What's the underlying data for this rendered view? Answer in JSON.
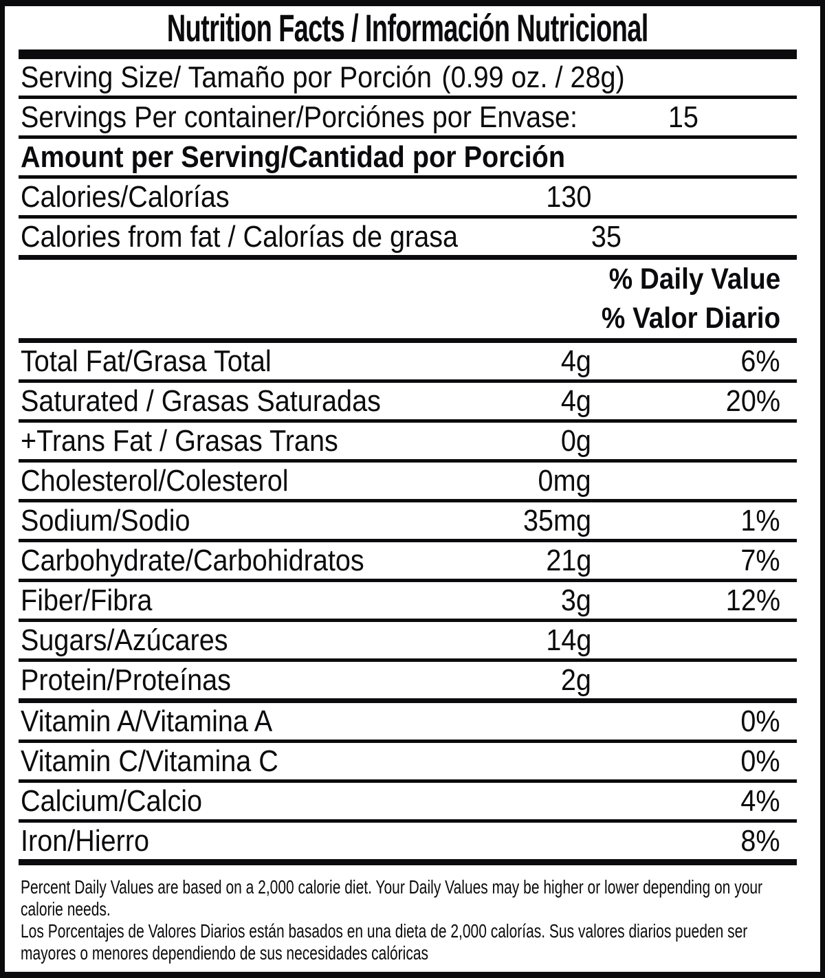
{
  "colors": {
    "ink": "#0b0b0d",
    "background": "#ffffff"
  },
  "label": {
    "title": "Nutrition Facts / Información Nutricional",
    "serving_size": {
      "label": "Serving Size/ Tamaño por Porción",
      "value": "(0.99 oz. / 28g)"
    },
    "servings_per_container": {
      "label": "Servings Per container/Porciónes por Envase:",
      "value": "15"
    },
    "amount_header": "Amount per Serving/Cantidad por Porción",
    "calories": {
      "label": "Calories/Calorías",
      "value": "130"
    },
    "calories_from_fat": {
      "label": "Calories from fat / Calorías de grasa",
      "value": "35"
    },
    "daily_value_header_en": "% Daily Value",
    "daily_value_header_es": "% Valor Diario",
    "nutrients": [
      {
        "label": "Total Fat/Grasa Total",
        "amount": "4g",
        "dv": "6%"
      },
      {
        "label": "Saturated / Grasas Saturadas",
        "amount": "4g",
        "dv": "20%"
      },
      {
        "label": "+Trans Fat / Grasas Trans",
        "amount": "0g",
        "dv": ""
      },
      {
        "label": "Cholesterol/Colesterol",
        "amount": "0mg",
        "dv": ""
      },
      {
        "label": "Sodium/Sodio",
        "amount": "35mg",
        "dv": "1%"
      },
      {
        "label": "Carbohydrate/Carbohidratos",
        "amount": "21g",
        "dv": "7%"
      },
      {
        "label": "Fiber/Fibra",
        "amount": "3g",
        "dv": "12%"
      },
      {
        "label": "Sugars/Azúcares",
        "amount": "14g",
        "dv": ""
      },
      {
        "label": "Protein/Proteínas",
        "amount": "2g",
        "dv": ""
      }
    ],
    "vitamins": [
      {
        "label": "Vitamin A/Vitamina A",
        "dv": "0%"
      },
      {
        "label": "Vitamin C/Vitamina C",
        "dv": "0%"
      },
      {
        "label": "Calcium/Calcio",
        "dv": "4%"
      },
      {
        "label": "Iron/Hierro",
        "dv": "8%"
      }
    ],
    "footnote_lines": [
      "Percent Daily Values are based on a 2,000 calorie diet. Your Daily Values may be higher or lower depending on your",
      "calorie needs.",
      "Los Porcentajes de Valores Diarios están basados en una dieta de 2,000 calorías. Sus valores diarios pueden ser",
      "mayores o menores dependiendo de sus necesidades calóricas"
    ]
  }
}
